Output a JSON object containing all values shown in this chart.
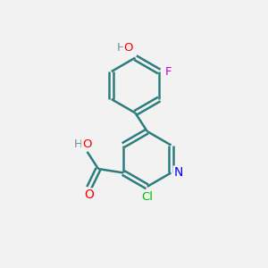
{
  "background_color": "#f2f2f2",
  "bond_color": "#2d7d7d",
  "atom_colors": {
    "O": "#ff0000",
    "N": "#0000ff",
    "Cl": "#00bb00",
    "F": "#cc00cc",
    "H_gray": "#7a9090",
    "C": "#2d7d7d"
  },
  "figsize": [
    3.0,
    3.0
  ],
  "dpi": 100
}
